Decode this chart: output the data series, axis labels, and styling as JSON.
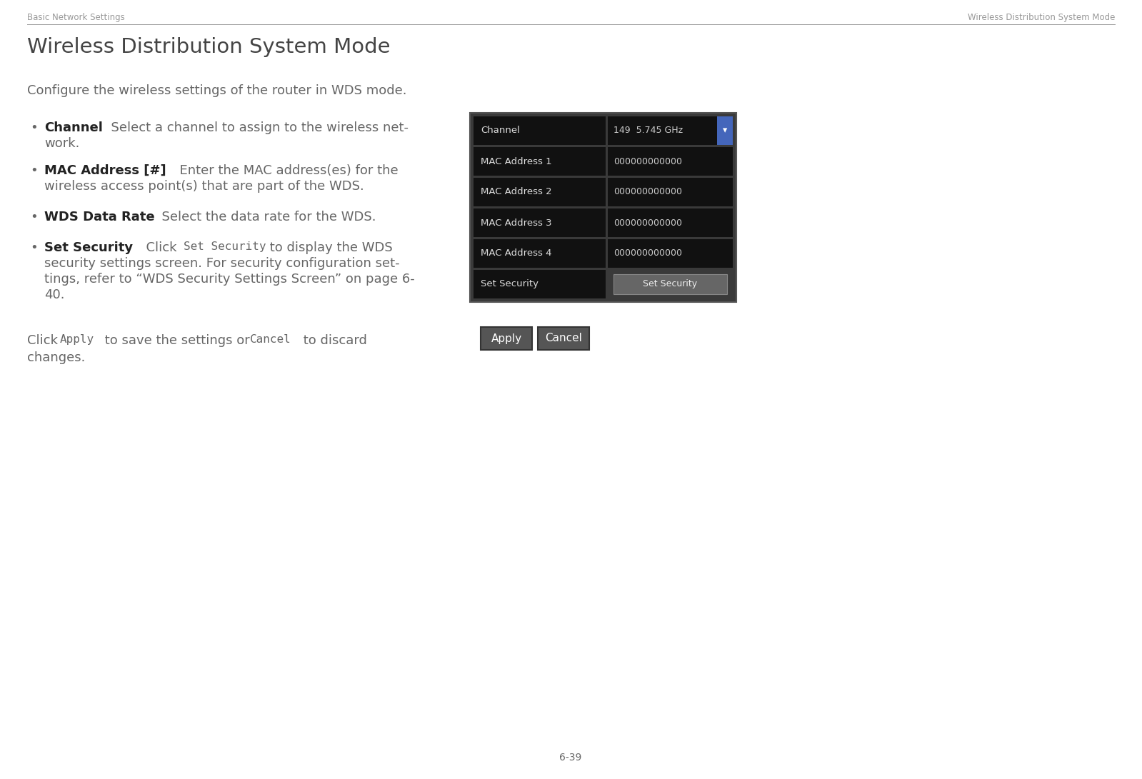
{
  "bg_color": "#ffffff",
  "header_left": "Basic Network Settings",
  "header_right": "Wireless Distribution System Mode",
  "header_color": "#999999",
  "header_fontsize": 8.5,
  "title": "Wireless Distribution System Mode",
  "title_fontsize": 21,
  "title_color": "#444444",
  "intro_text": "Configure the wireless settings of the router in WDS mode.",
  "intro_fontsize": 13,
  "intro_color": "#666666",
  "bullet_color": "#666666",
  "bullet_bold_color": "#222222",
  "bullet_fontsize": 13,
  "footer_fontsize": 13,
  "footer_color": "#666666",
  "page_number": "6-39",
  "table_rows": [
    {
      "label": "Channel",
      "value": "149  5.745 GHz ▾",
      "value_is_dropdown": true
    },
    {
      "label": "MAC Address 1",
      "value": "000000000000"
    },
    {
      "label": "MAC Address 2",
      "value": "000000000000"
    },
    {
      "label": "MAC Address 3",
      "value": "000000000000"
    },
    {
      "label": "MAC Address 4",
      "value": "000000000000"
    },
    {
      "label": "Set Security",
      "value": "Set Security",
      "value_is_button": true
    }
  ],
  "table_outer_color": "#555555",
  "table_cell_bg": "#111111",
  "table_label_color": "#dddddd",
  "table_value_color": "#cccccc",
  "table_sep_color": "#444444",
  "btn_apply_label": "Apply",
  "btn_cancel_label": "Cancel",
  "btn_bg": "#555555",
  "btn_text_color": "#ffffff",
  "btn_border": "#333333"
}
